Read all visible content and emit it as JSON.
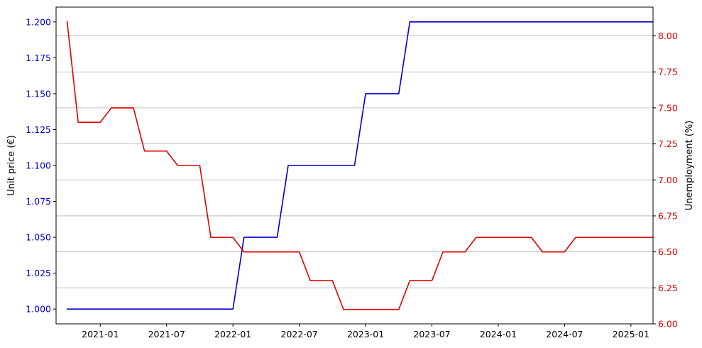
{
  "chart_data": {
    "type": "line",
    "title": "",
    "xlabel": "",
    "x_range": [
      "2020-09-01",
      "2025-03-01"
    ],
    "x_ticks": [
      "2021-01",
      "2021-07",
      "2022-01",
      "2022-07",
      "2023-01",
      "2023-07",
      "2024-01",
      "2024-07",
      "2025-01"
    ],
    "left_axis": {
      "label": "Unit price (€)",
      "color": "#0000cc",
      "ylim": [
        0.9897,
        1.2103
      ],
      "ticks": [
        "1.000",
        "1.025",
        "1.050",
        "1.075",
        "1.100",
        "1.125",
        "1.150",
        "1.175",
        "1.200"
      ]
    },
    "right_axis": {
      "label": "Unemployment (%)",
      "color": "#e00000",
      "ylim": [
        6.0,
        8.2
      ],
      "ticks": [
        "6.00",
        "6.25",
        "6.50",
        "6.75",
        "7.00",
        "7.25",
        "7.50",
        "7.75",
        "8.00"
      ]
    },
    "grid": "horizontal, right axis",
    "x": [
      "2020-10",
      "2020-11",
      "2020-12",
      "2021-01",
      "2021-02",
      "2021-03",
      "2021-04",
      "2021-05",
      "2021-06",
      "2021-07",
      "2021-08",
      "2021-09",
      "2021-10",
      "2021-11",
      "2021-12",
      "2022-01",
      "2022-02",
      "2022-03",
      "2022-04",
      "2022-05",
      "2022-06",
      "2022-07",
      "2022-08",
      "2022-09",
      "2022-10",
      "2022-11",
      "2022-12",
      "2023-01",
      "2023-02",
      "2023-03",
      "2023-04",
      "2023-05",
      "2023-06",
      "2023-07",
      "2023-08",
      "2023-09",
      "2023-10",
      "2023-11",
      "2023-12",
      "2024-01",
      "2024-02",
      "2024-03",
      "2024-04",
      "2024-05",
      "2024-06",
      "2024-07",
      "2024-08",
      "2024-09",
      "2024-10",
      "2024-11",
      "2024-12",
      "2025-01",
      "2025-02",
      "2025-03"
    ],
    "series": [
      {
        "axis": "left",
        "color": "#0000cc",
        "values": [
          1.0,
          1.0,
          1.0,
          1.0,
          1.0,
          1.0,
          1.0,
          1.0,
          1.0,
          1.0,
          1.0,
          1.0,
          1.0,
          1.0,
          1.0,
          1.0,
          1.05,
          1.05,
          1.05,
          1.05,
          1.1,
          1.1,
          1.1,
          1.1,
          1.1,
          1.1,
          1.1,
          1.15,
          1.15,
          1.15,
          1.15,
          1.2,
          1.2,
          1.2,
          1.2,
          1.2,
          1.2,
          1.2,
          1.2,
          1.2,
          1.2,
          1.2,
          1.2,
          1.2,
          1.2,
          1.2,
          1.2,
          1.2,
          1.2,
          1.2,
          1.2,
          1.2,
          1.2,
          1.2
        ]
      },
      {
        "axis": "right",
        "color": "#e00000",
        "values": [
          8.1,
          7.4,
          7.4,
          7.4,
          7.5,
          7.5,
          7.5,
          7.2,
          7.2,
          7.2,
          7.1,
          7.1,
          7.1,
          6.6,
          6.6,
          6.6,
          6.5,
          6.5,
          6.5,
          6.5,
          6.5,
          6.5,
          6.3,
          6.3,
          6.3,
          6.1,
          6.1,
          6.1,
          6.1,
          6.1,
          6.1,
          6.3,
          6.3,
          6.3,
          6.5,
          6.5,
          6.5,
          6.6,
          6.6,
          6.6,
          6.6,
          6.6,
          6.6,
          6.5,
          6.5,
          6.5,
          6.6,
          6.6,
          6.6,
          6.6,
          6.6,
          6.6,
          6.6,
          6.6
        ]
      }
    ]
  }
}
